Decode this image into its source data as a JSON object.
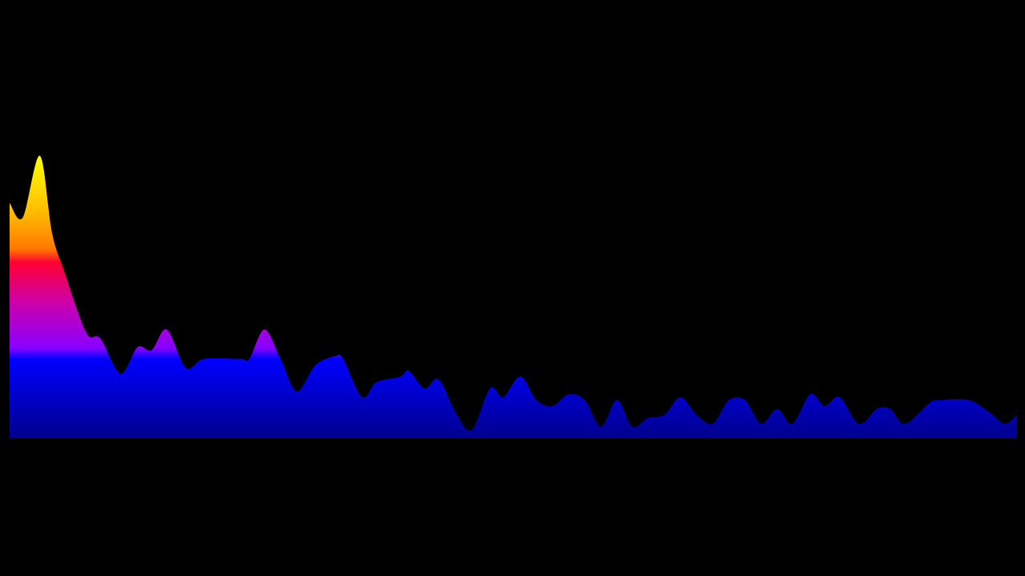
{
  "chart_data": {
    "type": "area",
    "title": "",
    "xlabel": "",
    "ylabel": "",
    "xlim": [
      0,
      100
    ],
    "ylim": [
      0,
      1
    ],
    "grid": false,
    "legend": "none",
    "background": "#000000",
    "gradient_colors": [
      "#ffff00",
      "#ff8800",
      "#ff0033",
      "#cc00aa",
      "#8800ff",
      "#0000ff",
      "#00008c"
    ],
    "points": [
      [
        0,
        0.8
      ],
      [
        1.3,
        0.75
      ],
      [
        3,
        0.96
      ],
      [
        4.2,
        0.7
      ],
      [
        5.4,
        0.57
      ],
      [
        7.6,
        0.36
      ],
      [
        9,
        0.34
      ],
      [
        11,
        0.22
      ],
      [
        12.7,
        0.31
      ],
      [
        14.1,
        0.3
      ],
      [
        15.6,
        0.37
      ],
      [
        17.5,
        0.24
      ],
      [
        19.3,
        0.27
      ],
      [
        22.9,
        0.27
      ],
      [
        23.8,
        0.27
      ],
      [
        25.3,
        0.37
      ],
      [
        26.9,
        0.27
      ],
      [
        28.5,
        0.16
      ],
      [
        30.4,
        0.25
      ],
      [
        32.4,
        0.28
      ],
      [
        33.1,
        0.27
      ],
      [
        35,
        0.14
      ],
      [
        36.4,
        0.19
      ],
      [
        38.8,
        0.21
      ],
      [
        39.6,
        0.23
      ],
      [
        41.2,
        0.17
      ],
      [
        42.6,
        0.2
      ],
      [
        44.4,
        0.08
      ],
      [
        45.9,
        0.03
      ],
      [
        47.7,
        0.17
      ],
      [
        49,
        0.14
      ],
      [
        50.7,
        0.21
      ],
      [
        52.3,
        0.13
      ],
      [
        53.9,
        0.11
      ],
      [
        55.5,
        0.15
      ],
      [
        57.1,
        0.13
      ],
      [
        58.7,
        0.04
      ],
      [
        60.3,
        0.13
      ],
      [
        61.8,
        0.04
      ],
      [
        63.4,
        0.07
      ],
      [
        65,
        0.08
      ],
      [
        66.6,
        0.14
      ],
      [
        68.2,
        0.08
      ],
      [
        69.8,
        0.05
      ],
      [
        71.4,
        0.13
      ],
      [
        73,
        0.13
      ],
      [
        74.6,
        0.05
      ],
      [
        76.2,
        0.1
      ],
      [
        77.7,
        0.05
      ],
      [
        79.5,
        0.15
      ],
      [
        80.9,
        0.11
      ],
      [
        82.4,
        0.14
      ],
      [
        84.3,
        0.05
      ],
      [
        86.1,
        0.1
      ],
      [
        87.4,
        0.1
      ],
      [
        88.9,
        0.05
      ],
      [
        91.3,
        0.12
      ],
      [
        92.4,
        0.13
      ],
      [
        95.2,
        0.13
      ],
      [
        97.2,
        0.09
      ],
      [
        98.8,
        0.05
      ],
      [
        100,
        0.08
      ]
    ]
  }
}
